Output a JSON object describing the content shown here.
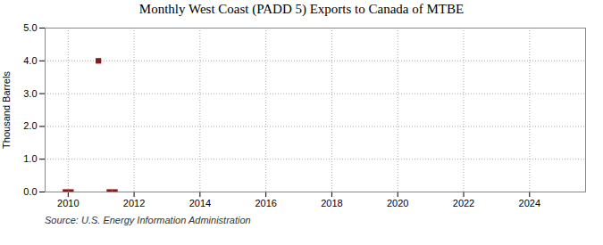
{
  "chart_data": {
    "type": "scatter",
    "title": "Monthly West Coast (PADD 5) Exports to Canada of MTBE",
    "ylabel": "Thousand Barrels",
    "caption": "Source: U.S. Energy Information Administration",
    "x": [
      2009.917,
      2010.083,
      2010.917,
      2011.25,
      2011.417
    ],
    "values": [
      0.0,
      0.0,
      4.0,
      0.0,
      0.0
    ],
    "color": "#8b1a1a",
    "marker": "square",
    "xlim": [
      2009.3,
      2025.7
    ],
    "xticks": [
      2010,
      2012,
      2014,
      2016,
      2018,
      2020,
      2022,
      2024
    ],
    "ylim": [
      0.0,
      5.0
    ],
    "yticks": [
      {
        "value": 0,
        "label": "0.0"
      },
      {
        "value": 1,
        "label": "1.0"
      },
      {
        "value": 2,
        "label": "2.0"
      },
      {
        "value": 3,
        "label": "3.0"
      },
      {
        "value": 4,
        "label": "4.0"
      },
      {
        "value": 5,
        "label": "5.0"
      }
    ],
    "grid": true
  }
}
